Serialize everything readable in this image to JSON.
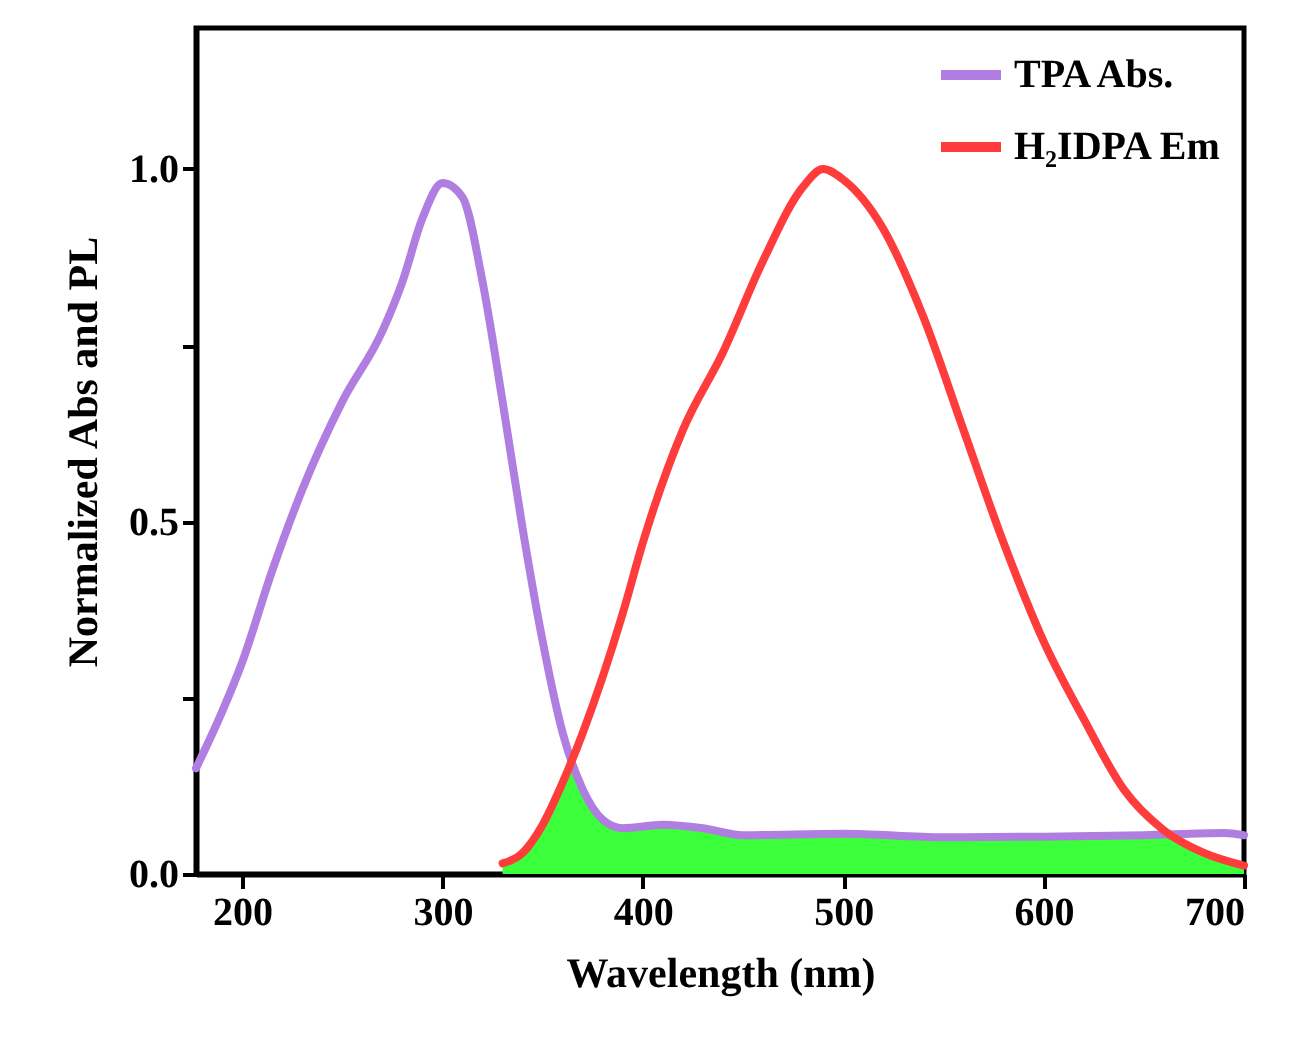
{
  "chart_data": {
    "type": "line",
    "xlabel": "Wavelength (nm)",
    "ylabel": "Normalized Abs and PL",
    "xlim": [
      177,
      700
    ],
    "xticks": [
      200,
      300,
      400,
      500,
      600,
      700
    ],
    "ylim": [
      0,
      1.2
    ],
    "yticks": [
      {
        "value": 0,
        "label": "0.0"
      },
      {
        "value": 0.25,
        "label": null
      },
      {
        "value": 0.5,
        "label": "0.5"
      },
      {
        "value": 0.75,
        "label": null
      },
      {
        "value": 1,
        "label": "1.0"
      }
    ],
    "legend": "top right",
    "grid": false,
    "series": [
      {
        "type": "area",
        "color": "#3cff3c",
        "x": [
          330,
          340,
          350,
          360,
          365,
          370,
          380,
          390,
          400,
          410,
          430,
          450,
          500,
          550,
          600,
          640,
          660,
          680,
          700
        ],
        "values": [
          0.015,
          0.03,
          0.07,
          0.13,
          0.16,
          0.12,
          0.077,
          0.065,
          0.065,
          0.07,
          0.065,
          0.055,
          0.057,
          0.052,
          0.053,
          0.054,
          0.055,
          0.03,
          0.012
        ]
      },
      {
        "name": "TPA  Abs.",
        "color": "#b07ee0",
        "x": [
          177,
          190,
          200,
          215,
          230,
          250,
          270,
          280,
          290,
          300,
          310,
          320,
          330,
          340,
          350,
          360,
          370,
          380,
          390,
          410,
          430,
          450,
          500,
          550,
          600,
          650,
          690,
          700
        ],
        "values": [
          0.15,
          0.23,
          0.3,
          0.43,
          0.545,
          0.67,
          0.77,
          0.84,
          0.93,
          0.98,
          0.96,
          0.84,
          0.67,
          0.49,
          0.33,
          0.2,
          0.12,
          0.077,
          0.065,
          0.07,
          0.065,
          0.055,
          0.057,
          0.052,
          0.053,
          0.055,
          0.058,
          0.055
        ]
      },
      {
        "name": "H₂IDPA  Em",
        "color": "#ff3c3c",
        "x": [
          330,
          340,
          350,
          360,
          370,
          380,
          390,
          400,
          420,
          440,
          460,
          480,
          490,
          500,
          520,
          540,
          560,
          580,
          600,
          620,
          640,
          660,
          680,
          700
        ],
        "values": [
          0.015,
          0.03,
          0.07,
          0.13,
          0.2,
          0.28,
          0.37,
          0.47,
          0.63,
          0.74,
          0.87,
          0.975,
          1.0,
          0.985,
          0.915,
          0.79,
          0.63,
          0.47,
          0.33,
          0.22,
          0.12,
          0.062,
          0.03,
          0.012
        ]
      }
    ]
  }
}
